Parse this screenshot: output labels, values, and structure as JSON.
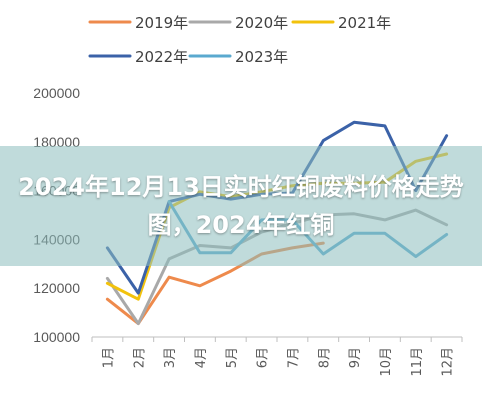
{
  "overlay_title": "2024年12月13日实时红铜废料价格走势图，2024年红铜",
  "chart_data": {
    "type": "line",
    "categories": [
      "1月",
      "2月",
      "3月",
      "4月",
      "5月",
      "6月",
      "7月",
      "8月",
      "9月",
      "10月",
      "11月",
      "12月"
    ],
    "series": [
      {
        "name": "2019年",
        "color": "#ee8a4c",
        "values": [
          115500,
          105500,
          124500,
          121000,
          127000,
          134000,
          136500,
          138500,
          null,
          null,
          null,
          null
        ]
      },
      {
        "name": "2020年",
        "color": "#a9a9a9",
        "values": [
          124000,
          105500,
          132000,
          137500,
          136500,
          143000,
          146500,
          150000,
          150500,
          148000,
          152000,
          146000
        ]
      },
      {
        "name": "2021年",
        "color": "#f2c20c",
        "values": [
          122000,
          115500,
          153000,
          159500,
          157500,
          159500,
          162000,
          163000,
          163000,
          163500,
          172000,
          175000
        ]
      },
      {
        "name": "2022年",
        "color": "#3b62a8",
        "values": [
          136500,
          118000,
          155500,
          158500,
          156500,
          158500,
          159000,
          180500,
          188000,
          186500,
          160000,
          182500
        ]
      },
      {
        "name": "2023年",
        "color": "#5aa9cf",
        "values": [
          null,
          null,
          155500,
          134500,
          134500,
          148000,
          148000,
          134000,
          142500,
          142500,
          133000,
          142000
        ]
      }
    ],
    "ylim": [
      100000,
      200000
    ],
    "yticks": [
      100000,
      120000,
      140000,
      160000,
      180000,
      200000
    ],
    "ytick_labels": [
      "100000",
      "120000",
      "140000",
      "160000",
      "180000",
      "200000"
    ],
    "grid": false,
    "legend_position": "top"
  }
}
